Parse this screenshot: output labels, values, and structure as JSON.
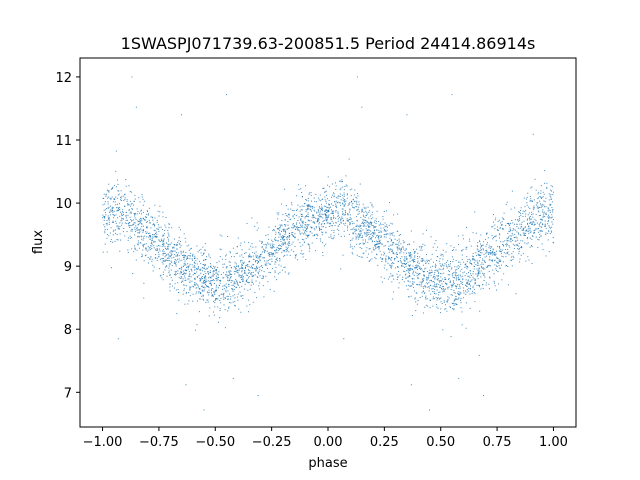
{
  "chart_data": {
    "type": "scatter",
    "title": "1SWASPJ071739.63-200851.5 Period 24414.86914s",
    "xlabel": "phase",
    "ylabel": "flux",
    "xlim": [
      -1.1,
      1.1
    ],
    "ylim": [
      6.45,
      12.3
    ],
    "xticks": [
      -1.0,
      -0.75,
      -0.5,
      -0.25,
      0.0,
      0.25,
      0.5,
      0.75,
      1.0
    ],
    "xtick_labels": [
      "−1.00",
      "−0.75",
      "−0.50",
      "−0.25",
      "0.00",
      "0.25",
      "0.50",
      "0.75",
      "1.00"
    ],
    "yticks": [
      7,
      8,
      9,
      10,
      11,
      12
    ],
    "ytick_labels": [
      "7",
      "8",
      "9",
      "10",
      "11",
      "12"
    ],
    "grid": false,
    "marker_color": "#1f77b4",
    "model": {
      "description": "phase-folded light curve, period 1 in phase; flux approx mean + amplitude*cos(2*pi*(phase - peak_phase)), scatter ~0.25",
      "mean": 9.3,
      "amplitude": 0.55,
      "peak_phase": 0.02,
      "minimum_phase": 0.52,
      "n_points_approx": 4000
    },
    "series": [
      {
        "name": "",
        "x": [
          -1.0,
          -0.9,
          -0.8,
          -0.7,
          -0.6,
          -0.5,
          -0.45,
          -0.4,
          -0.3,
          -0.2,
          -0.1,
          0.0,
          0.05,
          0.1,
          0.2,
          0.3,
          0.4,
          0.5,
          0.55,
          0.6,
          0.7,
          0.8,
          0.9,
          1.0
        ],
        "y": [
          9.8,
          9.85,
          9.6,
          9.35,
          9.05,
          8.8,
          8.75,
          8.8,
          9.0,
          9.35,
          9.65,
          9.85,
          9.85,
          9.8,
          9.6,
          9.35,
          9.05,
          8.8,
          8.75,
          8.8,
          9.05,
          9.35,
          9.65,
          9.8
        ]
      }
    ],
    "outliers": [
      {
        "x": -0.87,
        "y": 12.0
      },
      {
        "x": -0.85,
        "y": 11.52
      },
      {
        "x": -0.65,
        "y": 11.4
      },
      {
        "x": -0.45,
        "y": 11.72
      },
      {
        "x": 0.13,
        "y": 12.0
      },
      {
        "x": 0.15,
        "y": 11.52
      },
      {
        "x": 0.35,
        "y": 11.4
      },
      {
        "x": 0.55,
        "y": 11.72
      },
      {
        "x": -0.63,
        "y": 7.12
      },
      {
        "x": -0.42,
        "y": 7.22
      },
      {
        "x": -0.31,
        "y": 6.95
      },
      {
        "x": 0.37,
        "y": 7.12
      },
      {
        "x": 0.58,
        "y": 7.22
      },
      {
        "x": 0.69,
        "y": 6.95
      },
      {
        "x": -0.93,
        "y": 7.85
      },
      {
        "x": 0.07,
        "y": 7.85
      },
      {
        "x": -0.55,
        "y": 6.72
      },
      {
        "x": 0.45,
        "y": 6.72
      }
    ]
  }
}
